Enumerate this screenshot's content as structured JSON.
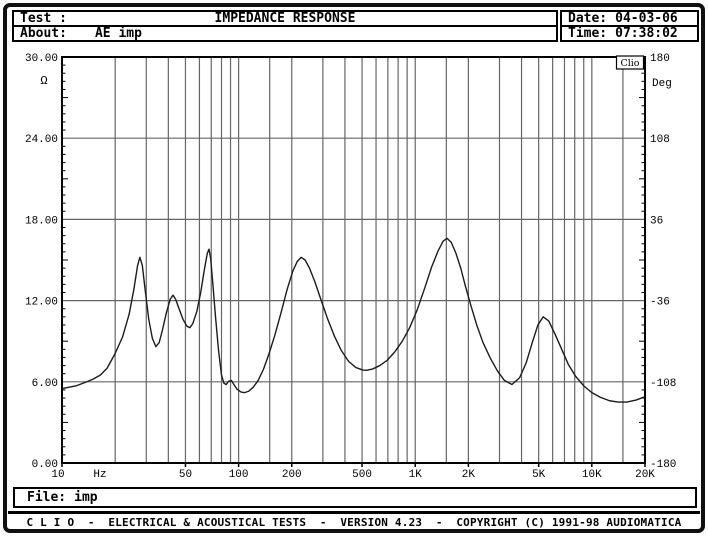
{
  "header": {
    "test_label": "Test :",
    "title": "IMPEDANCE RESPONSE",
    "about_label": "About:",
    "about_value": "AE imp",
    "date_label": "Date:",
    "date_value": "04-03-06",
    "time_label": "Time:",
    "time_value": "07:38:02"
  },
  "file_bar": {
    "label": "File:",
    "value": "imp"
  },
  "footer": {
    "text": "C L I O  -  ELECTRICAL & ACOUSTICAL TESTS  -  VERSION 4.23  -  COPYRIGHT (C) 1991-98 AUDIOMATICA"
  },
  "colors": {
    "background": "#ffffff",
    "frame": "#101010",
    "box_border": "#000000",
    "grid": "#666666",
    "plot_border": "#000000",
    "curve": "#1c1c1c",
    "text": "#000000"
  },
  "chart_data": {
    "type": "line",
    "title": "IMPEDANCE RESPONSE",
    "badge": "Clio",
    "x_axis": {
      "unit_label": "Hz",
      "scale": "log",
      "min_hz": 10,
      "max_hz": 20000,
      "tick_values": [
        10,
        50,
        100,
        200,
        500,
        1000,
        2000,
        5000,
        10000,
        20000
      ],
      "tick_labels": [
        "10",
        "50",
        "100",
        "200",
        "500",
        "1K",
        "2K",
        "5K",
        "10K",
        "20K"
      ],
      "gridline_values": [
        20,
        30,
        40,
        50,
        60,
        70,
        80,
        90,
        100,
        150,
        200,
        300,
        400,
        500,
        600,
        700,
        800,
        900,
        1000,
        1500,
        2000,
        3000,
        4000,
        5000,
        6000,
        7000,
        8000,
        9000,
        10000,
        15000
      ]
    },
    "y_left": {
      "unit_label": "Ω",
      "min": 0,
      "max": 30,
      "tick_values": [
        30,
        24,
        18,
        12,
        6,
        0
      ],
      "tick_labels": [
        "30.00",
        "24.00",
        "18.00",
        "12.00",
        "6.00",
        "0.00"
      ]
    },
    "y_right": {
      "unit_label": "Deg",
      "min": -180,
      "max": 180,
      "tick_values": [
        180,
        108,
        36,
        -36,
        -108,
        -180
      ],
      "tick_labels": [
        "180",
        "108",
        "36",
        "-36",
        "-108",
        "-180"
      ]
    },
    "grid": true,
    "series": [
      {
        "name": "impedance-magnitude",
        "unit": "ohm",
        "points": [
          [
            10,
            5.5
          ],
          [
            11,
            5.6
          ],
          [
            12,
            5.7
          ],
          [
            13.5,
            5.95
          ],
          [
            15,
            6.2
          ],
          [
            16.5,
            6.5
          ],
          [
            18,
            7.0
          ],
          [
            20,
            8.1
          ],
          [
            22,
            9.3
          ],
          [
            24,
            11.0
          ],
          [
            25.5,
            12.8
          ],
          [
            26.8,
            14.6
          ],
          [
            27.6,
            15.2
          ],
          [
            28.5,
            14.6
          ],
          [
            29.5,
            12.9
          ],
          [
            31,
            10.6
          ],
          [
            32.5,
            9.2
          ],
          [
            34,
            8.6
          ],
          [
            35.5,
            8.9
          ],
          [
            37,
            9.8
          ],
          [
            39,
            11.1
          ],
          [
            41,
            12.1
          ],
          [
            42.5,
            12.4
          ],
          [
            44,
            12.1
          ],
          [
            46,
            11.4
          ],
          [
            48.5,
            10.6
          ],
          [
            51,
            10.1
          ],
          [
            53,
            10.0
          ],
          [
            55,
            10.3
          ],
          [
            58,
            11.2
          ],
          [
            61,
            12.6
          ],
          [
            64,
            14.3
          ],
          [
            66.5,
            15.5
          ],
          [
            68,
            15.8
          ],
          [
            69.5,
            15.1
          ],
          [
            71.5,
            13.2
          ],
          [
            74,
            10.8
          ],
          [
            77,
            8.3
          ],
          [
            80,
            6.5
          ],
          [
            82.5,
            5.9
          ],
          [
            85,
            5.8
          ],
          [
            88,
            6.05
          ],
          [
            91,
            6.1
          ],
          [
            94,
            5.8
          ],
          [
            98,
            5.45
          ],
          [
            103,
            5.25
          ],
          [
            108,
            5.2
          ],
          [
            114,
            5.3
          ],
          [
            121,
            5.6
          ],
          [
            129,
            6.1
          ],
          [
            138,
            6.9
          ],
          [
            148,
            8.0
          ],
          [
            160,
            9.4
          ],
          [
            173,
            11.0
          ],
          [
            188,
            12.8
          ],
          [
            203,
            14.2
          ],
          [
            215,
            14.9
          ],
          [
            226,
            15.2
          ],
          [
            238,
            15.0
          ],
          [
            252,
            14.4
          ],
          [
            270,
            13.4
          ],
          [
            292,
            12.1
          ],
          [
            318,
            10.7
          ],
          [
            348,
            9.4
          ],
          [
            382,
            8.3
          ],
          [
            420,
            7.5
          ],
          [
            462,
            7.05
          ],
          [
            505,
            6.87
          ],
          [
            532,
            6.85
          ],
          [
            575,
            6.95
          ],
          [
            630,
            7.2
          ],
          [
            695,
            7.6
          ],
          [
            765,
            8.2
          ],
          [
            845,
            9.0
          ],
          [
            930,
            10.0
          ],
          [
            1025,
            11.3
          ],
          [
            1130,
            12.9
          ],
          [
            1240,
            14.5
          ],
          [
            1350,
            15.7
          ],
          [
            1440,
            16.4
          ],
          [
            1515,
            16.6
          ],
          [
            1600,
            16.3
          ],
          [
            1700,
            15.5
          ],
          [
            1810,
            14.4
          ],
          [
            1930,
            13.0
          ],
          [
            2070,
            11.6
          ],
          [
            2230,
            10.2
          ],
          [
            2420,
            8.9
          ],
          [
            2650,
            7.8
          ],
          [
            2920,
            6.8
          ],
          [
            3200,
            6.1
          ],
          [
            3530,
            5.8
          ],
          [
            3900,
            6.3
          ],
          [
            4250,
            7.4
          ],
          [
            4600,
            8.9
          ],
          [
            4950,
            10.2
          ],
          [
            5300,
            10.8
          ],
          [
            5700,
            10.5
          ],
          [
            6150,
            9.6
          ],
          [
            6700,
            8.5
          ],
          [
            7350,
            7.3
          ],
          [
            8100,
            6.4
          ],
          [
            9000,
            5.7
          ],
          [
            10000,
            5.2
          ],
          [
            11200,
            4.85
          ],
          [
            12600,
            4.6
          ],
          [
            14100,
            4.5
          ],
          [
            15800,
            4.5
          ],
          [
            17800,
            4.65
          ],
          [
            20000,
            4.9
          ]
        ]
      }
    ]
  }
}
